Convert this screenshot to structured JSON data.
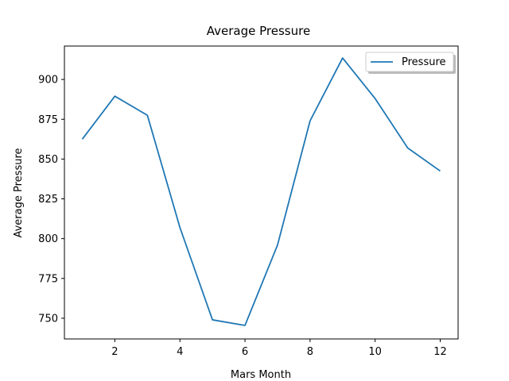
{
  "chart_data": {
    "type": "line",
    "title": "Average Pressure",
    "xlabel": "Mars Month",
    "ylabel": "Average Pressure",
    "xlim": [
      0.45,
      12.55
    ],
    "ylim": [
      737,
      921
    ],
    "xticks": [
      2,
      4,
      6,
      8,
      10,
      12
    ],
    "yticks": [
      750,
      775,
      800,
      825,
      850,
      875,
      900
    ],
    "grid": false,
    "legend": "upper-right",
    "series": [
      {
        "name": "Pressure",
        "color": "#1f77b4",
        "x": [
          1,
          2,
          3,
          4,
          5,
          6,
          7,
          8,
          9,
          10,
          11,
          12
        ],
        "y": [
          862.5,
          889.5,
          877.5,
          807,
          749,
          745.5,
          796,
          874,
          913.5,
          888,
          857,
          842.5
        ]
      }
    ]
  }
}
